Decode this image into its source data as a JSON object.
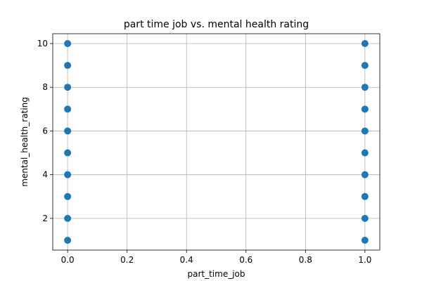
{
  "chart_data": {
    "type": "scatter",
    "title": "part time job vs. mental health rating",
    "xlabel": "part_time_job",
    "ylabel": "mental_health_rating",
    "xlim": [
      -0.05,
      1.05
    ],
    "ylim": [
      0.55,
      10.45
    ],
    "xticks": [
      0.0,
      0.2,
      0.4,
      0.6,
      0.8,
      1.0
    ],
    "xtick_labels": [
      "0.0",
      "0.2",
      "0.4",
      "0.6",
      "0.8",
      "1.0"
    ],
    "yticks": [
      2,
      4,
      6,
      8,
      10
    ],
    "ytick_labels": [
      "2",
      "4",
      "6",
      "8",
      "10"
    ],
    "grid": true,
    "marker_color": "#1f77b4",
    "points": [
      {
        "x": 0,
        "y": 1
      },
      {
        "x": 0,
        "y": 2
      },
      {
        "x": 0,
        "y": 3
      },
      {
        "x": 0,
        "y": 4
      },
      {
        "x": 0,
        "y": 5
      },
      {
        "x": 0,
        "y": 6
      },
      {
        "x": 0,
        "y": 7
      },
      {
        "x": 0,
        "y": 8
      },
      {
        "x": 0,
        "y": 9
      },
      {
        "x": 0,
        "y": 10
      },
      {
        "x": 1,
        "y": 1
      },
      {
        "x": 1,
        "y": 2
      },
      {
        "x": 1,
        "y": 3
      },
      {
        "x": 1,
        "y": 4
      },
      {
        "x": 1,
        "y": 5
      },
      {
        "x": 1,
        "y": 6
      },
      {
        "x": 1,
        "y": 7
      },
      {
        "x": 1,
        "y": 8
      },
      {
        "x": 1,
        "y": 9
      },
      {
        "x": 1,
        "y": 10
      }
    ]
  }
}
